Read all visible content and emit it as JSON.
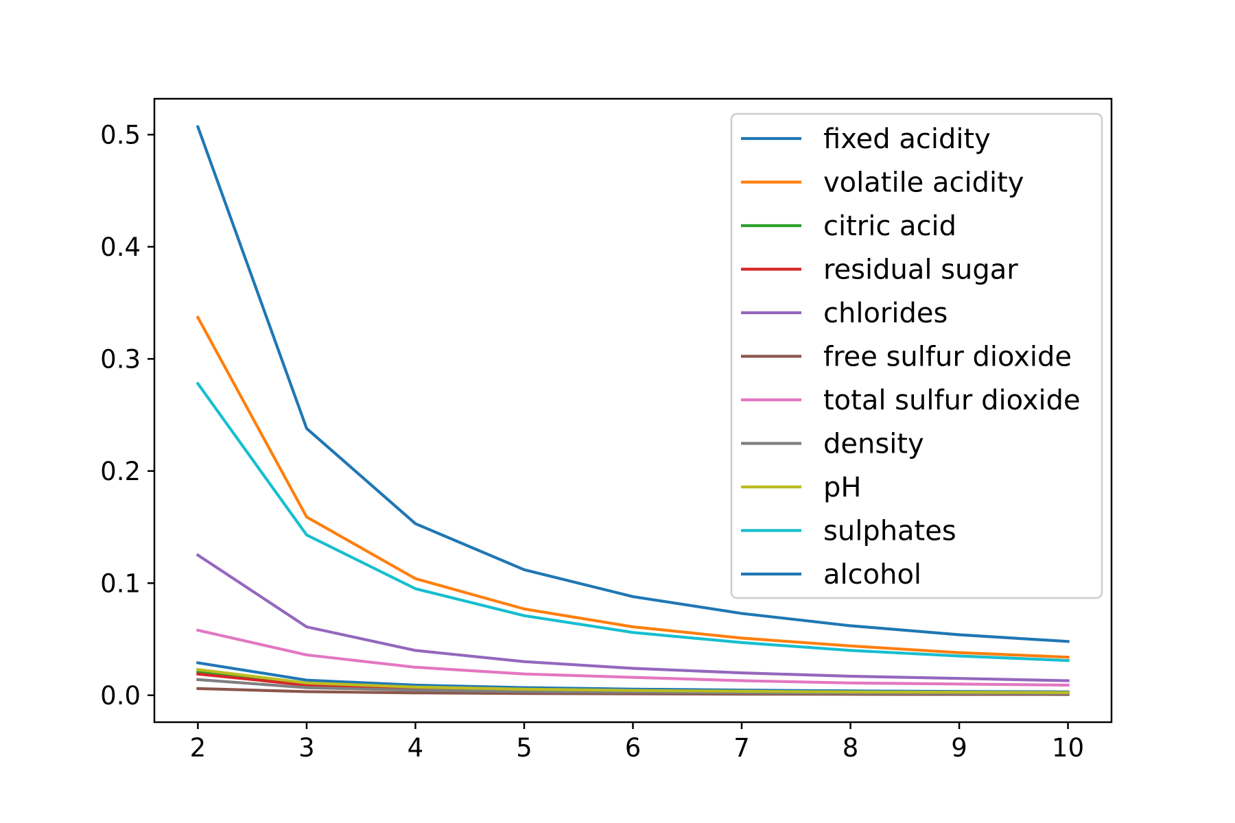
{
  "chart_data": {
    "type": "line",
    "title": "",
    "xlabel": "",
    "ylabel": "",
    "x": [
      2,
      3,
      4,
      5,
      6,
      7,
      8,
      9,
      10
    ],
    "xlim": [
      1.6,
      10.4
    ],
    "ylim": [
      -0.024,
      0.532
    ],
    "xticks": [
      2,
      3,
      4,
      5,
      6,
      7,
      8,
      9,
      10
    ],
    "xtick_labels": [
      "2",
      "3",
      "4",
      "5",
      "6",
      "7",
      "8",
      "9",
      "10"
    ],
    "yticks": [
      0.0,
      0.1,
      0.2,
      0.3,
      0.4,
      0.5
    ],
    "ytick_labels": [
      "0.0",
      "0.1",
      "0.2",
      "0.3",
      "0.4",
      "0.5"
    ],
    "grid": false,
    "legend_position": "top-right",
    "series": [
      {
        "name": "fixed acidity",
        "color": "#1f77b4",
        "values": [
          0.029,
          0.0135,
          0.009,
          0.0068,
          0.0055,
          0.0046,
          0.0039,
          0.0034,
          0.003
        ]
      },
      {
        "name": "volatile acidity",
        "color": "#ff7f0e",
        "values": [
          0.337,
          0.159,
          0.104,
          0.077,
          0.061,
          0.051,
          0.044,
          0.038,
          0.034
        ]
      },
      {
        "name": "citric acid",
        "color": "#2ca02c",
        "values": [
          0.021,
          0.01,
          0.0065,
          0.0048,
          0.0038,
          0.0031,
          0.0027,
          0.0023,
          0.002
        ]
      },
      {
        "name": "residual sugar",
        "color": "#d62728",
        "values": [
          0.019,
          0.009,
          0.0058,
          0.0043,
          0.0034,
          0.0028,
          0.0024,
          0.0021,
          0.0018
        ]
      },
      {
        "name": "chlorides",
        "color": "#9467bd",
        "values": [
          0.125,
          0.061,
          0.04,
          0.03,
          0.024,
          0.02,
          0.017,
          0.015,
          0.013
        ]
      },
      {
        "name": "free sulfur dioxide",
        "color": "#8c564b",
        "values": [
          0.006,
          0.0032,
          0.0021,
          0.0016,
          0.0013,
          0.001,
          0.0009,
          0.0008,
          0.0007
        ]
      },
      {
        "name": "total sulfur dioxide",
        "color": "#e377c2",
        "values": [
          0.058,
          0.036,
          0.025,
          0.019,
          0.016,
          0.013,
          0.011,
          0.01,
          0.009
        ]
      },
      {
        "name": "density",
        "color": "#7f7f7f",
        "values": [
          0.014,
          0.0068,
          0.0045,
          0.0033,
          0.0027,
          0.0022,
          0.0019,
          0.0016,
          0.0015
        ]
      },
      {
        "name": "pH",
        "color": "#bcbd22",
        "values": [
          0.023,
          0.011,
          0.0073,
          0.0054,
          0.0043,
          0.0036,
          0.003,
          0.0027,
          0.0024
        ]
      },
      {
        "name": "sulphates",
        "color": "#17becf",
        "values": [
          0.278,
          0.143,
          0.095,
          0.071,
          0.056,
          0.047,
          0.04,
          0.035,
          0.031
        ]
      },
      {
        "name": "alcohol",
        "color": "#1f77b4",
        "values": [
          0.507,
          0.238,
          0.153,
          0.112,
          0.088,
          0.073,
          0.062,
          0.054,
          0.048
        ]
      }
    ]
  }
}
